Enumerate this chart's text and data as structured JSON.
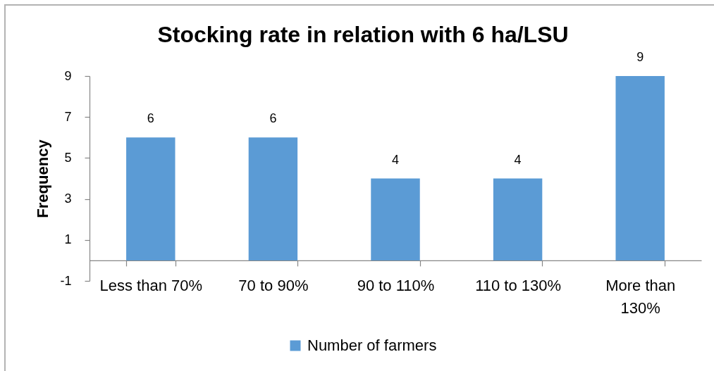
{
  "chart_data": {
    "type": "bar",
    "title": "Stocking rate in relation with 6 ha/LSU",
    "ylabel": "Frequency",
    "categories": [
      "Less than 70%",
      "70 to 90%",
      "90 to 110%",
      "110 to 130%",
      "More than 130%"
    ],
    "series": [
      {
        "name": "Number of farmers",
        "color": "#5b9bd5",
        "values": [
          6,
          6,
          4,
          4,
          9
        ]
      }
    ],
    "ylim": [
      -1,
      9
    ],
    "yticks": [
      -1,
      1,
      3,
      5,
      7,
      9
    ],
    "grid": false,
    "legend": "bottom",
    "data_labels": true
  }
}
